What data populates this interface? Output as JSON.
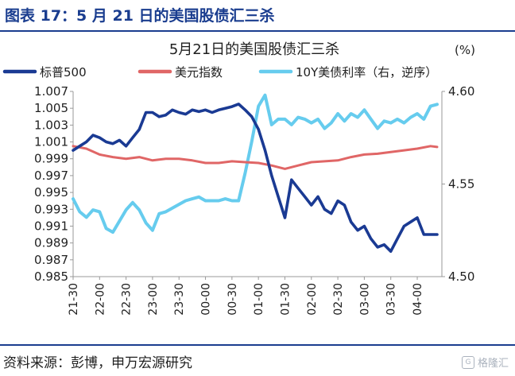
{
  "figure": {
    "title": "图表 17：5 月 21 日的美国股债汇三杀",
    "source": "资料来源：彭博，申万宏源研究",
    "watermark": "格隆汇"
  },
  "colors": {
    "header_blue": "#1a3d8f",
    "sp500": "#1a3a93",
    "usd_index": "#e06666",
    "ust10y": "#66ccee"
  },
  "chart_data": {
    "type": "line",
    "title": "5月21日的美国股债汇三杀",
    "right_unit": "(%)",
    "categories": [
      "21-30",
      "22-00",
      "22-30",
      "23-00",
      "23-30",
      "00-00",
      "00-30",
      "01-00",
      "01-30",
      "02-00",
      "02-30",
      "03-00",
      "03-30",
      "04-00"
    ],
    "left_axis": {
      "ylim": [
        0.985,
        1.007
      ],
      "ticks": [
        "1.007",
        "1.005",
        "1.003",
        "1.001",
        "0.999",
        "0.997",
        "0.995",
        "0.993",
        "0.991",
        "0.989",
        "0.987",
        "0.985"
      ]
    },
    "right_axis": {
      "ylim": [
        4.5,
        4.6
      ],
      "ticks": [
        "4.60",
        "4.55",
        "4.50"
      ],
      "inverted": true
    },
    "legend": [
      "标普500",
      "美元指数",
      "10Y美债利率（右，逆序）"
    ],
    "series": [
      {
        "name": "标普500",
        "axis": "left",
        "x": [
          0,
          0.5,
          1,
          1.5,
          2,
          2.5,
          3,
          3.5,
          4,
          4.5,
          5,
          5.5,
          6,
          6.5,
          7,
          7.5,
          8,
          8.5,
          9,
          9.5,
          10,
          10.5,
          11,
          11.5,
          12,
          12.5,
          13,
          13.5,
          14,
          14.5,
          15,
          15.5,
          16,
          16.5,
          17,
          17.5,
          18,
          18.5,
          19,
          19.5,
          20,
          20.5,
          21,
          21.5,
          22,
          22.5,
          23,
          23.5,
          24,
          24.5,
          25,
          25.5,
          26,
          26.5,
          27,
          27.5
        ],
        "values": [
          1.0,
          1.0005,
          1.001,
          1.0018,
          1.0015,
          1.001,
          1.0008,
          1.0012,
          1.0005,
          1.0015,
          1.0025,
          1.0045,
          1.0045,
          1.004,
          1.0042,
          1.0048,
          1.0045,
          1.0043,
          1.0048,
          1.0046,
          1.0048,
          1.0045,
          1.0048,
          1.005,
          1.0052,
          1.0055,
          1.0048,
          1.004,
          1.0025,
          1.0,
          0.997,
          0.9945,
          0.992,
          0.9965,
          0.9955,
          0.9945,
          0.9935,
          0.9945,
          0.993,
          0.9925,
          0.994,
          0.9935,
          0.9915,
          0.9905,
          0.991,
          0.9895,
          0.9885,
          0.9888,
          0.988,
          0.9895,
          0.991,
          0.9915,
          0.992,
          0.99,
          0.99,
          0.99
        ]
      },
      {
        "name": "美元指数",
        "axis": "left",
        "x": [
          0,
          1,
          2,
          3,
          4,
          5,
          6,
          7,
          8,
          9,
          10,
          11,
          12,
          13,
          14,
          15,
          16,
          17,
          18,
          19,
          20,
          21,
          22,
          23,
          24,
          25,
          26,
          27,
          27.5
        ],
        "values": [
          1.0005,
          1.0002,
          0.9995,
          0.9992,
          0.999,
          0.9992,
          0.9988,
          0.999,
          0.999,
          0.9988,
          0.9985,
          0.9985,
          0.9987,
          0.9986,
          0.9985,
          0.9982,
          0.9978,
          0.9982,
          0.9986,
          0.9987,
          0.9988,
          0.9992,
          0.9995,
          0.9996,
          0.9998,
          1.0,
          1.0002,
          1.0005,
          1.0004
        ]
      },
      {
        "name": "10Y美债利率（右，逆序）",
        "axis": "right",
        "x": [
          0,
          0.5,
          1,
          1.5,
          2,
          2.5,
          3,
          3.5,
          4,
          4.5,
          5,
          5.5,
          6,
          6.5,
          7,
          7.5,
          8,
          8.5,
          9,
          9.5,
          10,
          10.5,
          11,
          11.5,
          12,
          12.5,
          13,
          13.5,
          14,
          14.5,
          15,
          15.5,
          16,
          16.5,
          17,
          17.5,
          18,
          18.5,
          19,
          19.5,
          20,
          20.5,
          21,
          21.5,
          22,
          22.5,
          23,
          23.5,
          24,
          24.5,
          25,
          25.5,
          26,
          26.5,
          27,
          27.5
        ],
        "values": [
          4.542,
          4.535,
          4.532,
          4.536,
          4.535,
          4.526,
          4.524,
          4.53,
          4.536,
          4.54,
          4.536,
          4.529,
          4.525,
          4.534,
          4.535,
          4.537,
          4.539,
          4.541,
          4.542,
          4.543,
          4.541,
          4.541,
          4.541,
          4.542,
          4.541,
          4.541,
          4.556,
          4.573,
          4.592,
          4.598,
          4.582,
          4.585,
          4.585,
          4.582,
          4.586,
          4.585,
          4.583,
          4.585,
          4.58,
          4.583,
          4.588,
          4.584,
          4.588,
          4.586,
          4.59,
          4.585,
          4.58,
          4.584,
          4.583,
          4.585,
          4.583,
          4.586,
          4.588,
          4.585,
          4.592,
          4.593
        ]
      }
    ]
  }
}
